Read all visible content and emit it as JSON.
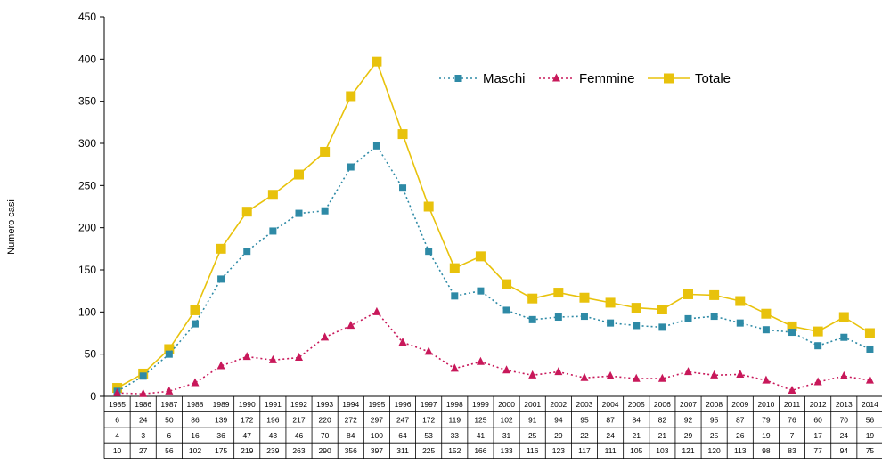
{
  "chart_data": {
    "type": "line",
    "ylabel": "Numero casi",
    "ylim": [
      0,
      450
    ],
    "yticks": [
      0,
      50,
      100,
      150,
      200,
      250,
      300,
      350,
      400,
      450
    ],
    "legend_position": "top-right",
    "grid": false,
    "categories": [
      "1985",
      "1986",
      "1987",
      "1988",
      "1989",
      "1990",
      "1991",
      "1992",
      "1993",
      "1994",
      "1995",
      "1996",
      "1997",
      "1998",
      "1999",
      "2000",
      "2001",
      "2002",
      "2003",
      "2004",
      "2005",
      "2006",
      "2007",
      "2008",
      "2009",
      "2010",
      "2011",
      "2012",
      "2013",
      "2014"
    ],
    "series": [
      {
        "name": "Maschi",
        "color": "#2e8aa6",
        "marker": "square",
        "line": "dotted",
        "values": [
          6,
          24,
          50,
          86,
          139,
          172,
          196,
          217,
          220,
          272,
          297,
          247,
          172,
          119,
          125,
          102,
          91,
          94,
          95,
          87,
          84,
          82,
          92,
          95,
          87,
          79,
          76,
          60,
          70,
          56
        ]
      },
      {
        "name": "Femmine",
        "color": "#c8185a",
        "marker": "triangle",
        "line": "dotted",
        "values": [
          4,
          3,
          6,
          16,
          36,
          47,
          43,
          46,
          70,
          84,
          100,
          64,
          53,
          33,
          41,
          31,
          25,
          29,
          22,
          24,
          21,
          21,
          29,
          25,
          26,
          19,
          7,
          17,
          24,
          19
        ]
      },
      {
        "name": "Totale",
        "color": "#e8c20c",
        "marker": "square",
        "line": "solid",
        "values": [
          10,
          27,
          56,
          102,
          175,
          219,
          239,
          263,
          290,
          356,
          397,
          311,
          225,
          152,
          166,
          133,
          116,
          123,
          117,
          111,
          105,
          103,
          121,
          120,
          113,
          98,
          83,
          77,
          94,
          75
        ]
      }
    ]
  }
}
